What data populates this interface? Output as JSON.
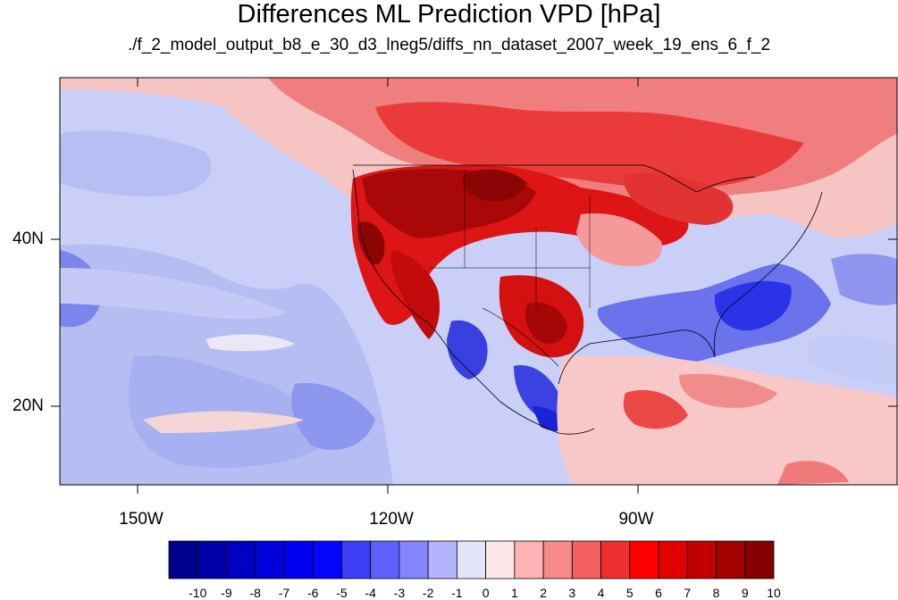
{
  "header": {
    "title": "Differences ML Prediction VPD [hPa]",
    "subtitle": "./f_2_model_output_b8_e_30_d3_lneg5/diffs_nn_dataset_2007_week_19_ens_6_f_2"
  },
  "map": {
    "projection": "cylindrical-equidistant",
    "lon_range": [
      -159.5,
      -60.5
    ],
    "lat_range": [
      10.5,
      59.5
    ],
    "lat_labels": [
      "40N",
      "20N"
    ],
    "lon_labels": [
      "150W",
      "120W",
      "90W"
    ],
    "fill_colors": {
      "ocean_west": "#c3c9f6",
      "ocean_east_pink": "#f9c6c6",
      "north_red": "#ee3a3a",
      "west_dark_red": "#b80b0b",
      "se_us_blue": "#3d46ee",
      "mexico_blue": "#2f3ae0",
      "coastline": "#000000"
    }
  },
  "colorbar": {
    "tick_labels": [
      "-10",
      "-9",
      "-8",
      "-7",
      "-6",
      "-5",
      "-4",
      "-3",
      "-2",
      "-1",
      "0",
      "1",
      "2",
      "3",
      "4",
      "5",
      "6",
      "7",
      "8",
      "9",
      "10"
    ],
    "colors": [
      "#00008f",
      "#0000a8",
      "#0000c2",
      "#0000db",
      "#0000f0",
      "#0505ff",
      "#3d3df5",
      "#5f5fff",
      "#8585ff",
      "#b3b3ff",
      "#e5e5fa",
      "#fce8e8",
      "#fcb3b3",
      "#f88a8a",
      "#f26060",
      "#ee3030",
      "#ff0000",
      "#e00000",
      "#c20000",
      "#a30000",
      "#860000"
    ]
  }
}
